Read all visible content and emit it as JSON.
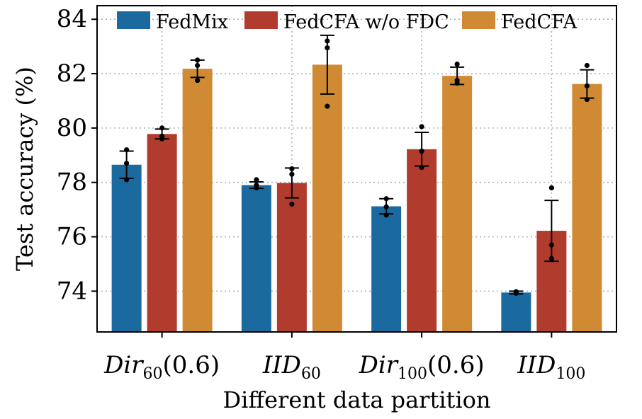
{
  "chart_data": {
    "type": "bar",
    "title": "",
    "xlabel": "Different data partition",
    "ylabel": "Test accuracy (%)",
    "ylim": [
      72.5,
      84.5
    ],
    "yticks": [
      74,
      76,
      78,
      80,
      82,
      84
    ],
    "grid": true,
    "legend_position": "top",
    "categories": [
      {
        "base": "Dir",
        "sub": "60",
        "suffix": "(0.6)",
        "text": "Dir60(0.6)"
      },
      {
        "base": "IID",
        "sub": "60",
        "suffix": "",
        "text": "IID60"
      },
      {
        "base": "Dir",
        "sub": "100",
        "suffix": "(0.6)",
        "text": "Dir100(0.6)"
      },
      {
        "base": "IID",
        "sub": "100",
        "suffix": "",
        "text": "IID100"
      }
    ],
    "series": [
      {
        "name": "FedMix",
        "color": "#1a6aa0",
        "values": [
          78.65,
          77.9,
          77.12,
          73.95
        ],
        "errors": [
          0.5,
          0.12,
          0.28,
          0.05
        ],
        "points": [
          [
            79.2,
            78.7,
            78.1
          ],
          [
            78.1,
            77.9,
            77.8
          ],
          [
            77.4,
            77.1,
            76.8
          ],
          [
            73.98,
            73.95,
            73.92
          ]
        ]
      },
      {
        "name": "FedCFA w/o FDC",
        "color": "#b13c2e",
        "values": [
          79.78,
          77.98,
          79.22,
          76.22
        ],
        "errors": [
          0.18,
          0.55,
          0.62,
          1.12
        ],
        "points": [
          [
            80.0,
            79.7,
            79.6
          ],
          [
            78.5,
            78.3,
            77.2
          ],
          [
            80.05,
            79.15,
            78.55
          ],
          [
            77.8,
            75.7,
            75.2
          ]
        ]
      },
      {
        "name": "FedCFA",
        "color": "#d18a34",
        "values": [
          82.18,
          82.33,
          81.92,
          81.62
        ],
        "errors": [
          0.32,
          1.08,
          0.32,
          0.52
        ],
        "points": [
          [
            82.5,
            82.3,
            81.75
          ],
          [
            83.2,
            82.95,
            80.8
          ],
          [
            82.35,
            81.75,
            81.65
          ],
          [
            82.3,
            81.55,
            81.05
          ]
        ]
      }
    ]
  }
}
